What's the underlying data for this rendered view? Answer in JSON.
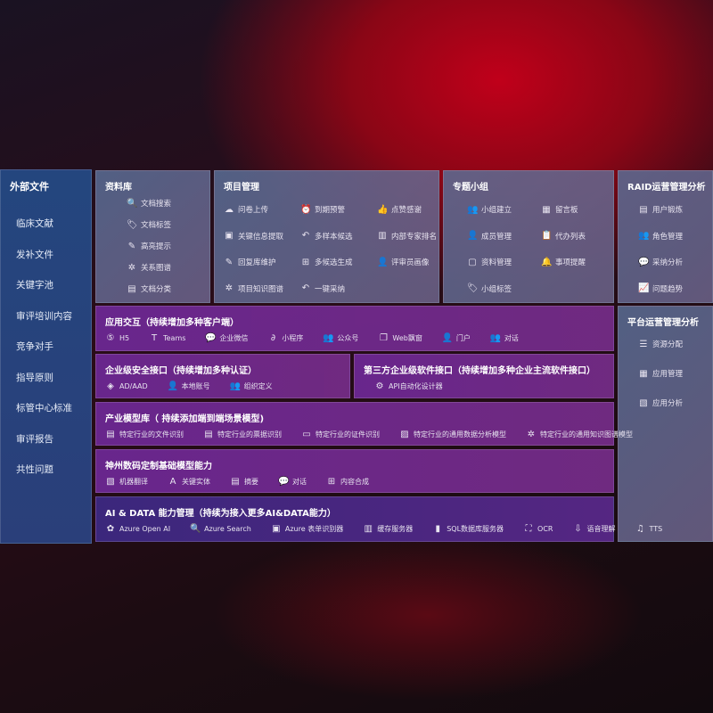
{
  "sidebar": {
    "title": "外部文件",
    "items": [
      "临床文献",
      "发补文件",
      "关键字池",
      "审评培训内容",
      "竞争对手",
      "指导原则",
      "标管中心标准",
      "审评报告",
      "共性问题"
    ]
  },
  "library": {
    "title": "资料库",
    "items": [
      {
        "icon": "doc-search-icon",
        "g": "🔍",
        "label": "文档搜索"
      },
      {
        "icon": "tag-icon",
        "g": "🏷",
        "label": "文档标签"
      },
      {
        "icon": "pen-icon",
        "g": "✎",
        "label": "高亮提示"
      },
      {
        "icon": "graph-icon",
        "g": "✲",
        "label": "关系图谱"
      },
      {
        "icon": "doc-classify-icon",
        "g": "▤",
        "label": "文档分类"
      }
    ]
  },
  "project": {
    "title": "项目管理",
    "items": [
      {
        "icon": "upload-cloud-icon",
        "g": "☁",
        "label": "问卷上传"
      },
      {
        "icon": "alarm-icon",
        "g": "⏰",
        "label": "到期预警"
      },
      {
        "icon": "thumbs-up-icon",
        "g": "👍",
        "label": "点赞感谢"
      },
      {
        "icon": "extract-icon",
        "g": "▣",
        "label": "关键信息提取"
      },
      {
        "icon": "reply-icon",
        "g": "↶",
        "label": "多样本候选"
      },
      {
        "icon": "ranking-icon",
        "g": "▥",
        "label": "内部专家排名"
      },
      {
        "icon": "edit-icon",
        "g": "✎",
        "label": "回复库维护"
      },
      {
        "icon": "puzzle-icon",
        "g": "⊞",
        "label": "多候选生成"
      },
      {
        "icon": "user-icon",
        "g": "👤",
        "label": "评审员画像"
      },
      {
        "icon": "graph-icon",
        "g": "✲",
        "label": "项目知识图谱"
      },
      {
        "icon": "reply-icon",
        "g": "↶",
        "label": "一键采纳"
      }
    ]
  },
  "group": {
    "title": "专题小组",
    "items": [
      {
        "icon": "group-icon",
        "g": "👥",
        "label": "小组建立"
      },
      {
        "icon": "bbs-icon",
        "g": "▦",
        "label": "留言板"
      },
      {
        "icon": "member-add-icon",
        "g": "👤",
        "label": "成员管理"
      },
      {
        "icon": "clipboard-icon",
        "g": "📋",
        "label": "代办列表"
      },
      {
        "icon": "folder-icon",
        "g": "▢",
        "label": "资料管理"
      },
      {
        "icon": "bell-icon",
        "g": "🔔",
        "label": "事项提醒"
      },
      {
        "icon": "tag-icon",
        "g": "🏷",
        "label": "小组标签"
      }
    ]
  },
  "raid": {
    "title": "RAID运营管理分析",
    "items": [
      {
        "icon": "id-card-icon",
        "g": "▤",
        "label": "用户锻炼"
      },
      {
        "icon": "users-icon",
        "g": "👥",
        "label": "角色管理"
      },
      {
        "icon": "qa-icon",
        "g": "💬",
        "label": "采纳分析"
      },
      {
        "icon": "trend-icon",
        "g": "📈",
        "label": "问题趋势"
      }
    ]
  },
  "platform": {
    "title": "平台运营管理分析",
    "items": [
      {
        "icon": "list-icon",
        "g": "☰",
        "label": "资源分配"
      },
      {
        "icon": "apps-icon",
        "g": "▦",
        "label": "应用管理"
      },
      {
        "icon": "analysis-icon",
        "g": "▧",
        "label": "应用分析"
      }
    ]
  },
  "interaction": {
    "title": "应用交互（持续增加多种客户端）",
    "items": [
      {
        "icon": "html5-icon",
        "g": "⑤",
        "label": "H5"
      },
      {
        "icon": "teams-icon",
        "g": "T",
        "label": "Teams"
      },
      {
        "icon": "wecom-icon",
        "g": "💬",
        "label": "企业微信"
      },
      {
        "icon": "miniprogram-icon",
        "g": "∂",
        "label": "小程序"
      },
      {
        "icon": "official-account-icon",
        "g": "👥",
        "label": "公众号"
      },
      {
        "icon": "window-icon",
        "g": "❐",
        "label": "Web飘窗"
      },
      {
        "icon": "portal-icon",
        "g": "👤",
        "label": "门户"
      },
      {
        "icon": "chat-icon",
        "g": "👥",
        "label": "对话"
      }
    ]
  },
  "security": {
    "title": "企业级安全接口（持续增加多种认证）",
    "items": [
      {
        "icon": "ad-icon",
        "g": "◈",
        "label": "AD/AAD"
      },
      {
        "icon": "local-account-icon",
        "g": "👤",
        "label": "本地账号"
      },
      {
        "icon": "org-icon",
        "g": "👥",
        "label": "组织定义"
      }
    ]
  },
  "thirdparty": {
    "title": "第三方企业级软件接口（持续增加多种企业主流软件接口）",
    "items": [
      {
        "icon": "gear-icon",
        "g": "⚙",
        "label": "API自动化设计器"
      }
    ]
  },
  "industry": {
    "title": "产业模型库（ 持续添加端到端场景模型)",
    "items": [
      {
        "icon": "file-icon",
        "g": "▤",
        "label": "特定行业的文件识别"
      },
      {
        "icon": "receipt-icon",
        "g": "▤",
        "label": "特定行业的票据识别"
      },
      {
        "icon": "id-card-icon",
        "g": "▭",
        "label": "特定行业的证件识别"
      },
      {
        "icon": "chart-icon",
        "g": "▨",
        "label": "特定行业的通用数据分析模型"
      },
      {
        "icon": "graph-icon",
        "g": "✲",
        "label": "特定行业的通用知识图谱模型"
      }
    ]
  },
  "base": {
    "title": "神州数码定制基础模型能力",
    "items": [
      {
        "icon": "translate-icon",
        "g": "▧",
        "label": "机器翻译"
      },
      {
        "icon": "entity-icon",
        "g": "A",
        "label": "关键实体"
      },
      {
        "icon": "summary-icon",
        "g": "▤",
        "label": "摘要"
      },
      {
        "icon": "chat-icon",
        "g": "💬",
        "label": "对话"
      },
      {
        "icon": "compose-icon",
        "g": "⊞",
        "label": "内容合成"
      }
    ]
  },
  "ai": {
    "title": "AI & DATA 能力管理（持续为接入更多AI&DATA能力）",
    "items": [
      {
        "icon": "openai-icon",
        "g": "✿",
        "label": "Azure Open AI"
      },
      {
        "icon": "search-icon",
        "g": "🔍",
        "label": "Azure Search"
      },
      {
        "icon": "form-icon",
        "g": "▣",
        "label": "Azure 表单识别器"
      },
      {
        "icon": "cache-icon",
        "g": "▥",
        "label": "缓存服务器"
      },
      {
        "icon": "database-icon",
        "g": "▮",
        "label": "SQL数据库服务器"
      },
      {
        "icon": "ocr-icon",
        "g": "⛶",
        "label": "OCR"
      },
      {
        "icon": "speech-icon",
        "g": "⇩",
        "label": "语音理解"
      },
      {
        "icon": "tts-icon",
        "g": "♫",
        "label": "TTS"
      }
    ]
  }
}
